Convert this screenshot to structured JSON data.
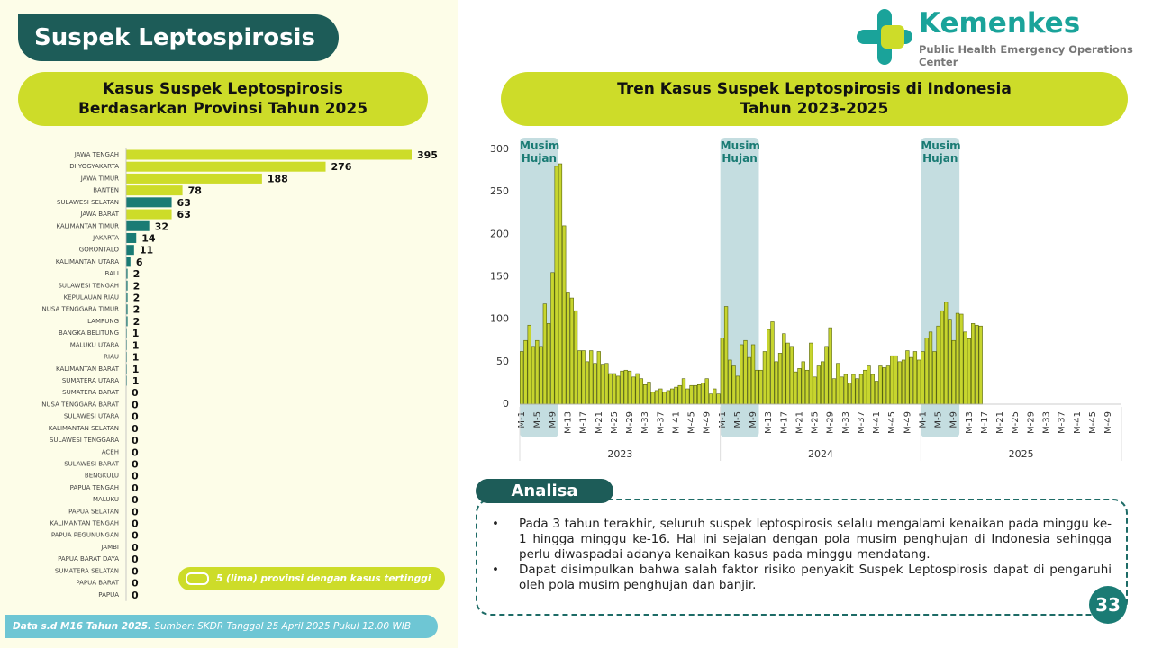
{
  "header": {
    "title": "Suspek Leptospirosis",
    "logo_name": "Kemenkes",
    "logo_subtitle": "Public Health Emergency Operations Center"
  },
  "chart_data": [
    {
      "type": "barh",
      "title": "Kasus Suspek Leptospirosis\nBerdasarkan Provinsi Tahun 2025",
      "categories": [
        "JAWA TENGAH",
        "DI YOGYAKARTA",
        "JAWA TIMUR",
        "BANTEN",
        "SULAWESI SELATAN",
        "JAWA BARAT",
        "KALIMANTAN TIMUR",
        "JAKARTA",
        "GORONTALO",
        "KALIMANTAN UTARA",
        "BALI",
        "SULAWESI TENGAH",
        "KEPULAUAN RIAU",
        "NUSA TENGGARA TIMUR",
        "LAMPUNG",
        "BANGKA BELITUNG",
        "MALUKU UTARA",
        "RIAU",
        "KALIMANTAN BARAT",
        "SUMATERA UTARA",
        "SUMATERA BARAT",
        "NUSA TENGGARA BARAT",
        "SULAWESI UTARA",
        "KALIMANTAN SELATAN",
        "SULAWESI TENGGARA",
        "ACEH",
        "SULAWESI BARAT",
        "BENGKULU",
        "PAPUA TENGAH",
        "MALUKU",
        "PAPUA SELATAN",
        "KALIMANTAN TENGAH",
        "PAPUA PEGUNUNGAN",
        "JAMBI",
        "PAPUA BARAT DAYA",
        "SUMATERA SELATAN",
        "PAPUA BARAT",
        "PAPUA"
      ],
      "series": [
        {
          "name": "5 (lima) provinsi dengan kasus tertinggi",
          "color": "#cddc29",
          "values": [
            395,
            276,
            188,
            78,
            63,
            63,
            32,
            14,
            11,
            6,
            2,
            2,
            2,
            2,
            2,
            1,
            1,
            1,
            1,
            1,
            0,
            0,
            0,
            0,
            0,
            0,
            0,
            0,
            0,
            0,
            0,
            0,
            0,
            0,
            0,
            0,
            0,
            0
          ],
          "colors": [
            "#cddc29",
            "#cddc29",
            "#cddc29",
            "#cddc29",
            "#1a7b74",
            "#cddc29",
            "#1a7b74",
            "#1a7b74",
            "#1a7b74",
            "#1a7b74",
            "#1a7b74",
            "#1a7b74",
            "#1a7b74",
            "#1a7b74",
            "#1a7b74",
            "#1a7b74",
            "#1a7b74",
            "#1a7b74",
            "#1a7b74",
            "#1a7b74",
            "#1a7b74",
            "#1a7b74",
            "#1a7b74",
            "#1a7b74",
            "#1a7b74",
            "#1a7b74",
            "#1a7b74",
            "#1a7b74",
            "#1a7b74",
            "#1a7b74",
            "#1a7b74",
            "#1a7b74",
            "#1a7b74",
            "#1a7b74",
            "#1a7b74",
            "#1a7b74",
            "#1a7b74",
            "#1a7b74"
          ]
        }
      ]
    },
    {
      "type": "bar",
      "title": "Tren Kasus Suspek Leptospirosis di Indonesia\nTahun 2023-2025",
      "groups": [
        "2023",
        "2024",
        "2025"
      ],
      "categories": [
        "M-1",
        null,
        null,
        null,
        "M-5",
        null,
        null,
        null,
        "M-9",
        null,
        null,
        null,
        "M-13",
        null,
        null,
        null,
        "M-17",
        null,
        null,
        null,
        "M-21",
        null,
        null,
        null,
        "M-25",
        null,
        null,
        null,
        "M-29",
        null,
        null,
        null,
        "M-33",
        null,
        null,
        null,
        "M-37",
        null,
        null,
        null,
        "M-41",
        null,
        null,
        null,
        "M-45",
        null,
        null,
        null,
        "M-49",
        null,
        null,
        null,
        "M-1",
        null,
        null,
        null,
        "M-5",
        null,
        null,
        null,
        "M-9",
        null,
        null,
        null,
        "M-13",
        null,
        null,
        null,
        "M-17",
        null,
        null,
        null,
        "M-21",
        null,
        null,
        null,
        "M-25",
        null,
        null,
        null,
        "M-29",
        null,
        null,
        null,
        "M-33",
        null,
        null,
        null,
        "M-37",
        null,
        null,
        null,
        "M-41",
        null,
        null,
        null,
        "M-45",
        null,
        null,
        null,
        "M-49",
        null,
        null,
        null,
        "M-1",
        null,
        null,
        null,
        "M-5",
        null,
        null,
        null,
        "M-9",
        null,
        null,
        null,
        "M-13",
        null,
        null,
        null,
        "M-17",
        null,
        null,
        null,
        "M-21",
        null,
        null,
        null,
        "M-25",
        null,
        null,
        null,
        "M-29",
        null,
        null,
        null,
        "M-33",
        null,
        null,
        null,
        "M-37",
        null,
        null,
        null,
        "M-41",
        null,
        null,
        null,
        "M-45",
        null,
        null,
        null,
        "M-49",
        null,
        null,
        null
      ],
      "color": "#c7d52e",
      "values": [
        62,
        75,
        93,
        68,
        75,
        68,
        118,
        95,
        155,
        280,
        283,
        210,
        132,
        125,
        110,
        63,
        63,
        50,
        63,
        48,
        62,
        47,
        48,
        36,
        36,
        33,
        39,
        40,
        39,
        32,
        36,
        30,
        23,
        26,
        14,
        16,
        18,
        14,
        16,
        18,
        20,
        22,
        30,
        18,
        22,
        22,
        23,
        25,
        30,
        12,
        18,
        12,
        78,
        115,
        52,
        45,
        33,
        70,
        75,
        55,
        70,
        40,
        40,
        62,
        88,
        97,
        50,
        60,
        83,
        72,
        68,
        38,
        42,
        50,
        40,
        72,
        32,
        45,
        50,
        68,
        90,
        30,
        48,
        32,
        35,
        25,
        35,
        30,
        35,
        40,
        45,
        35,
        27,
        45,
        43,
        45,
        57,
        57,
        50,
        52,
        63,
        55,
        62,
        52,
        62,
        78,
        85,
        62,
        92,
        110,
        120,
        100,
        75,
        107,
        106,
        85,
        77,
        95,
        93,
        92,
        null,
        null,
        null,
        null,
        null,
        null,
        null,
        null,
        null,
        null,
        null,
        null,
        null,
        null,
        null,
        null,
        null,
        null,
        null,
        null,
        null,
        null,
        null,
        null,
        null,
        null,
        null,
        null,
        null,
        null,
        null,
        null,
        null,
        null,
        null,
        null
      ],
      "ylim": [
        0,
        300
      ],
      "yticks": [
        0,
        50,
        100,
        150,
        200,
        250,
        300
      ],
      "grid": false,
      "annotations": [
        {
          "text": "Musim\nHujan",
          "group": 0,
          "weeks": [
            1,
            10
          ]
        },
        {
          "text": "Musim\nHujan",
          "group": 1,
          "weeks": [
            1,
            10
          ]
        },
        {
          "text": "Musim\nHujan",
          "group": 2,
          "weeks": [
            1,
            10
          ]
        }
      ]
    }
  ],
  "analysis": {
    "label": "Analisa",
    "bullets": [
      "Pada 3 tahun terakhir, seluruh suspek leptospirosis selalu mengalami kenaikan pada minggu ke-1 hingga minggu ke-16. Hal ini sejalan dengan pola musim penghujan di Indonesia sehingga perlu diwaspadai adanya kenaikan kasus pada minggu mendatang.",
      "Dapat disimpulkan bahwa salah faktor risiko penyakit Suspek Leptospirosis dapat di pengaruhi oleh pola musim penghujan dan banjir."
    ]
  },
  "footer": {
    "note_bold": "Data s.d M16 Tahun 2025.",
    "note": "Sumber: SKDR Tanggal 25 April 2025 Pukul 12.00 WIB"
  },
  "page_number": "33"
}
